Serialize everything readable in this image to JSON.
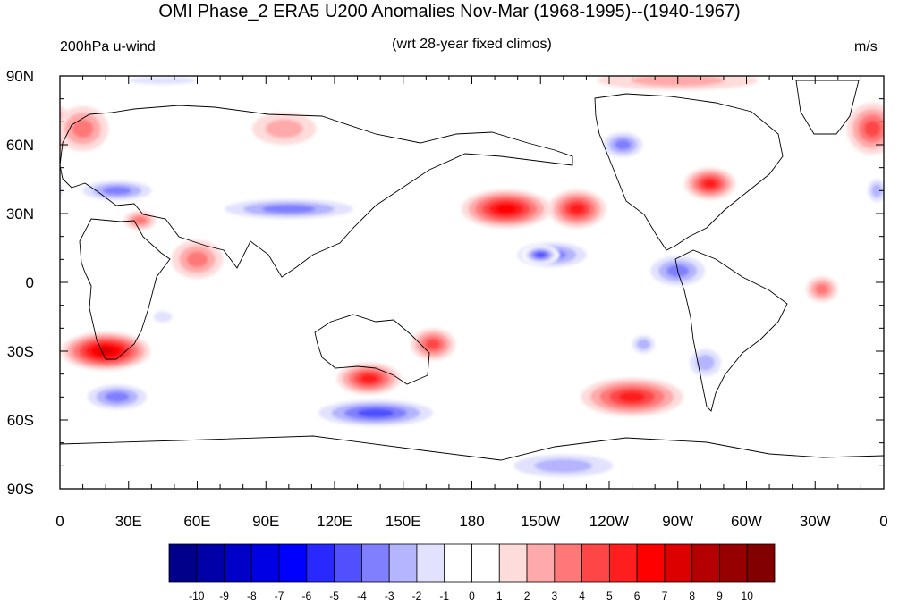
{
  "title": "OMI Phase_2 ERA5 U200 Anomalies Nov-Mar (1968-1995)--(1940-1967)",
  "left_string": "200hPa u-wind",
  "center_string": "(wrt 28-year fixed climos)",
  "right_string": "m/s",
  "lat_labels": [
    "90N",
    "60N",
    "30N",
    "0",
    "30S",
    "60S",
    "90S"
  ],
  "lon_labels": [
    "0",
    "30E",
    "60E",
    "90E",
    "120E",
    "150E",
    "180",
    "150W",
    "120W",
    "90W",
    "60W",
    "30W",
    "0"
  ],
  "colorbar": {
    "labels": [
      "-10",
      "-9",
      "-8",
      "-7",
      "-6",
      "-5",
      "-4",
      "-3",
      "-2",
      "-1",
      "0",
      "1",
      "2",
      "3",
      "4",
      "5",
      "6",
      "7",
      "8",
      "9",
      "10"
    ],
    "colors": [
      "#00008a",
      "#0000a8",
      "#0000c8",
      "#0000e4",
      "#0000ff",
      "#2828ff",
      "#5050ff",
      "#8080ff",
      "#b4b4ff",
      "#e2e2ff",
      "#ffffff",
      "#ffffff",
      "#ffdcdc",
      "#ffaaaa",
      "#ff7878",
      "#ff4646",
      "#ff1e1e",
      "#ff0000",
      "#dc0000",
      "#b40000",
      "#960000",
      "#820000"
    ]
  },
  "anomaly_features": [
    {
      "lon": 20,
      "lat": -30,
      "rx": 14,
      "ry": 6,
      "value": 7
    },
    {
      "lon": 135,
      "lat": -42,
      "rx": 10,
      "ry": 5,
      "value": 5
    },
    {
      "lon": 163,
      "lat": -27,
      "rx": 7,
      "ry": 5,
      "value": 4
    },
    {
      "lon": 195,
      "lat": 32,
      "rx": 14,
      "ry": 6,
      "value": 6
    },
    {
      "lon": 226,
      "lat": 32,
      "rx": 9,
      "ry": 6,
      "value": 5
    },
    {
      "lon": 250,
      "lat": -50,
      "rx": 16,
      "ry": 6,
      "value": 5
    },
    {
      "lon": 284,
      "lat": 43,
      "rx": 8,
      "ry": 5,
      "value": 5
    },
    {
      "lon": 333,
      "lat": -3,
      "rx": 5,
      "ry": 4,
      "value": 3
    },
    {
      "lon": 355,
      "lat": 67,
      "rx": 8,
      "ry": 8,
      "value": 4
    },
    {
      "lon": 10,
      "lat": 67,
      "rx": 8,
      "ry": 7,
      "value": 3
    },
    {
      "lon": 98,
      "lat": 67,
      "rx": 10,
      "ry": 5,
      "value": 2
    },
    {
      "lon": 60,
      "lat": 10,
      "rx": 8,
      "ry": 6,
      "value": 3
    },
    {
      "lon": 35,
      "lat": 27,
      "rx": 5,
      "ry": 3,
      "value": 3
    },
    {
      "lon": 270,
      "lat": 88,
      "rx": 25,
      "ry": 3,
      "value": 2
    },
    {
      "lon": 25,
      "lat": 40,
      "rx": 14,
      "ry": 4,
      "value": -4
    },
    {
      "lon": 100,
      "lat": 32,
      "rx": 26,
      "ry": 4,
      "value": -4
    },
    {
      "lon": 138,
      "lat": -57,
      "rx": 22,
      "ry": 5,
      "value": -5
    },
    {
      "lon": 215,
      "lat": 12,
      "rx": 14,
      "ry": 5,
      "value": -4
    },
    {
      "lon": 210,
      "lat": 12,
      "rx": 6,
      "ry": 3,
      "value": -5
    },
    {
      "lon": 246,
      "lat": 60,
      "rx": 8,
      "ry": 5,
      "value": -4
    },
    {
      "lon": 270,
      "lat": 5,
      "rx": 11,
      "ry": 6,
      "value": -4
    },
    {
      "lon": 255,
      "lat": -27,
      "rx": 5,
      "ry": 4,
      "value": -3
    },
    {
      "lon": 282,
      "lat": -35,
      "rx": 7,
      "ry": 6,
      "value": -3
    },
    {
      "lon": 25,
      "lat": -50,
      "rx": 12,
      "ry": 5,
      "value": -4
    },
    {
      "lon": 220,
      "lat": -80,
      "rx": 22,
      "ry": 5,
      "value": -3
    },
    {
      "lon": 357,
      "lat": 40,
      "rx": 4,
      "ry": 5,
      "value": -3
    },
    {
      "lon": 45,
      "lat": -15,
      "rx": 5,
      "ry": 3,
      "value": -2
    },
    {
      "lon": 45,
      "lat": 88,
      "rx": 18,
      "ry": 2,
      "value": -2
    }
  ]
}
